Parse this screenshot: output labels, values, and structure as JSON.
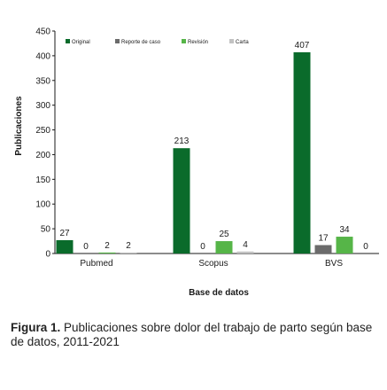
{
  "chart_data": {
    "type": "bar",
    "categories": [
      "Pubmed",
      "Scopus",
      "BVS"
    ],
    "series": [
      {
        "name": "Original",
        "values": [
          27,
          213,
          407
        ],
        "color": "#0a6b2b"
      },
      {
        "name": "Reporte de caso",
        "values": [
          0,
          0,
          17
        ],
        "color": "#6b6b6b"
      },
      {
        "name": "Revisión",
        "values": [
          2,
          25,
          34
        ],
        "color": "#56b548"
      },
      {
        "name": "Carta",
        "values": [
          2,
          4,
          0
        ],
        "color": "#c2c2c2"
      }
    ],
    "xlabel": "Base de datos",
    "ylabel": "Publicaciones",
    "ylim": [
      0,
      450
    ],
    "yticks": [
      0,
      50,
      100,
      150,
      200,
      250,
      300,
      350,
      400,
      450
    ],
    "legend": "top-left",
    "grid": false
  },
  "caption": {
    "label": "Figura 1.",
    "text": "Publicaciones sobre dolor del trabajo de parto según base de datos, 2011-2021"
  }
}
